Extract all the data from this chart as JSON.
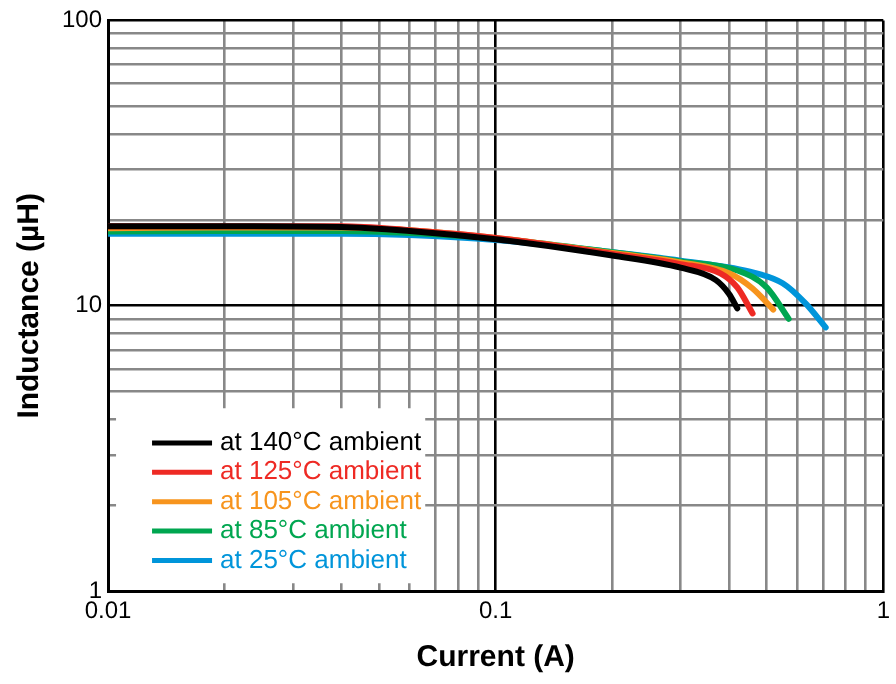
{
  "chart_data": {
    "type": "line",
    "xlabel": "Current (A)",
    "ylabel": "Inductance (µH)",
    "log": "xy",
    "grid": true,
    "legend": "bottom left",
    "marker": "none",
    "line_style": "solid",
    "xlim": [
      0.01,
      1
    ],
    "ylim": [
      1,
      100
    ],
    "xticks": [
      0.01,
      {
        "value": 0.02,
        "label": null
      },
      {
        "value": 0.03,
        "label": null
      },
      {
        "value": 0.04,
        "label": null
      },
      {
        "value": 0.05,
        "label": null
      },
      {
        "value": 0.06,
        "label": null
      },
      {
        "value": 0.07,
        "label": null
      },
      {
        "value": 0.08,
        "label": null
      },
      {
        "value": 0.09,
        "label": null
      },
      0.1,
      {
        "value": 0.2,
        "label": null
      },
      {
        "value": 0.3,
        "label": null
      },
      {
        "value": 0.4,
        "label": null
      },
      {
        "value": 0.5,
        "label": null
      },
      {
        "value": 0.6,
        "label": null
      },
      {
        "value": 0.7,
        "label": null
      },
      {
        "value": 0.8,
        "label": null
      },
      {
        "value": 0.9,
        "label": null
      },
      1
    ],
    "yticks": [
      1,
      {
        "value": 2,
        "label": null
      },
      {
        "value": 3,
        "label": null
      },
      {
        "value": 4,
        "label": null
      },
      {
        "value": 5,
        "label": null
      },
      {
        "value": 6,
        "label": null
      },
      {
        "value": 7,
        "label": null
      },
      {
        "value": 8,
        "label": null
      },
      {
        "value": 9,
        "label": null
      },
      10,
      {
        "value": 20,
        "label": null
      },
      {
        "value": 30,
        "label": null
      },
      {
        "value": 40,
        "label": null
      },
      {
        "value": 50,
        "label": null
      },
      {
        "value": 60,
        "label": null
      },
      {
        "value": 70,
        "label": null
      },
      {
        "value": 80,
        "label": null
      },
      {
        "value": 90,
        "label": null
      },
      100
    ],
    "series": [
      {
        "name": "at 140°C ambient",
        "color": "#000000",
        "x": [
          0.01,
          0.02,
          0.04,
          0.06,
          0.1,
          0.2,
          0.3,
          0.37,
          0.4,
          0.42
        ],
        "values": [
          19,
          19,
          18.9,
          18.3,
          17.1,
          15.0,
          13.6,
          12.3,
          11.0,
          9.8
        ]
      },
      {
        "name": "at 125°C ambient",
        "color": "#ee2a24",
        "x": [
          0.01,
          0.02,
          0.04,
          0.06,
          0.1,
          0.2,
          0.3,
          0.38,
          0.42,
          0.46
        ],
        "values": [
          19,
          19,
          19,
          18.4,
          17.3,
          15.2,
          14.0,
          13.0,
          11.6,
          9.4
        ]
      },
      {
        "name": "at 105°C ambient",
        "color": "#f7941d",
        "x": [
          0.01,
          0.02,
          0.04,
          0.06,
          0.1,
          0.2,
          0.3,
          0.4,
          0.46,
          0.52
        ],
        "values": [
          18.7,
          18.8,
          18.8,
          18.4,
          17.3,
          15.3,
          14.2,
          13.0,
          11.5,
          9.7
        ]
      },
      {
        "name": "at 85°C ambient",
        "color": "#00a650",
        "x": [
          0.01,
          0.02,
          0.04,
          0.06,
          0.1,
          0.2,
          0.3,
          0.42,
          0.5,
          0.57
        ],
        "values": [
          18.2,
          18.3,
          18.3,
          18.0,
          17.2,
          15.4,
          14.3,
          13.3,
          11.6,
          9.0
        ]
      },
      {
        "name": "at 25°C ambient",
        "color": "#0095da",
        "x": [
          0.01,
          0.02,
          0.04,
          0.06,
          0.1,
          0.2,
          0.3,
          0.45,
          0.55,
          0.63,
          0.71
        ],
        "values": [
          17.9,
          17.9,
          17.9,
          17.7,
          17.0,
          15.4,
          14.4,
          13.2,
          12.0,
          10.2,
          8.4
        ]
      }
    ]
  }
}
